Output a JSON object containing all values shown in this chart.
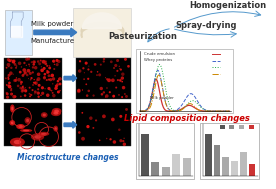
{
  "bg_color": "#ffffff",
  "top_left_labels": [
    "Milk powder",
    "Manufacture"
  ],
  "arrow_color": "#3a7abf",
  "process_labels": [
    "Pasteurization",
    "Homogenization",
    "Spray-drying"
  ],
  "bottom_label": "Microstructure changes",
  "lipid_label": "Lipid composition changes",
  "bottom_label_color": "#1a5fb4",
  "lipid_label_color": "#cc0000",
  "micro_font": 5.5,
  "lipid_font": 6.0,
  "process_font": 6.0,
  "label_font": 5.0,
  "curve_sets": [
    {
      "mu1": 0.18,
      "s1": 0.04,
      "a1": 0.55,
      "mu2": 0.55,
      "s2": 0.06,
      "a2": 0.1,
      "color": "#cc3333",
      "ls": "-",
      "lw": 0.9
    },
    {
      "mu1": 0.2,
      "s1": 0.05,
      "a1": 0.7,
      "mu2": 0.57,
      "s2": 0.07,
      "a2": 0.3,
      "color": "#4466cc",
      "ls": "--",
      "lw": 0.7
    },
    {
      "mu1": 0.22,
      "s1": 0.055,
      "a1": 0.8,
      "mu2": 0.59,
      "s2": 0.065,
      "a2": 0.18,
      "color": "#22aa44",
      "ls": ":",
      "lw": 0.7
    },
    {
      "mu1": 0.21,
      "s1": 0.045,
      "a1": 0.62,
      "mu2": 0.56,
      "s2": 0.05,
      "a2": 0.13,
      "color": "#cc8800",
      "ls": "-.",
      "lw": 0.7
    }
  ]
}
